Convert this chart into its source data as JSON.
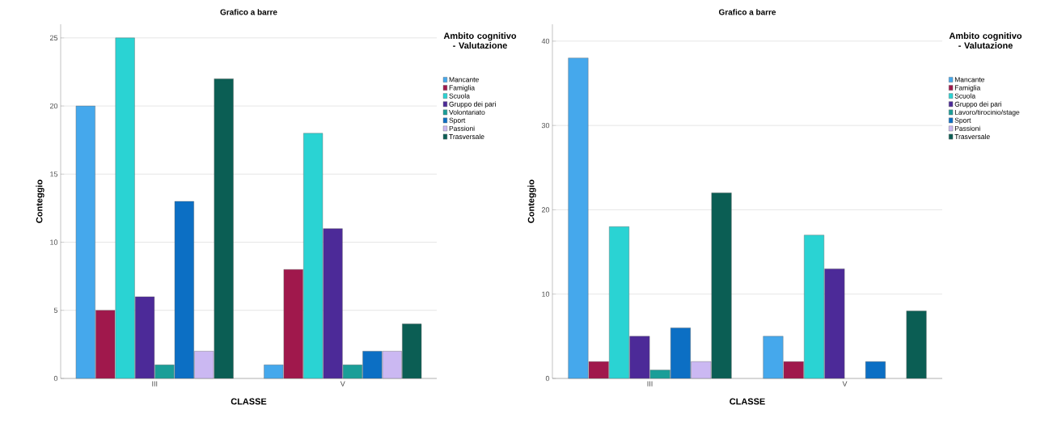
{
  "chart_data": [
    {
      "type": "bar",
      "title": "Grafico a barre",
      "xlabel": "CLASSE",
      "ylabel": "Conteggio",
      "legend_title": "Ambito cognitivo - Valutazione",
      "categories": [
        "III",
        "V"
      ],
      "ylim": [
        0,
        26
      ],
      "yticks": [
        0,
        5,
        10,
        15,
        20,
        25
      ],
      "grid": "y",
      "legend": "right",
      "series": [
        {
          "name": "Mancante",
          "color": "#45a8ec",
          "values": [
            20,
            1
          ]
        },
        {
          "name": "Famiglia",
          "color": "#a0184c",
          "values": [
            5,
            8
          ]
        },
        {
          "name": "Scuola",
          "color": "#2ad3d3",
          "values": [
            25,
            18
          ]
        },
        {
          "name": "Gruppo dei pari",
          "color": "#4c2a98",
          "values": [
            6,
            11
          ]
        },
        {
          "name": "Volontariato",
          "color": "#1a9e98",
          "values": [
            1,
            1
          ]
        },
        {
          "name": "Sport",
          "color": "#0c6fc4",
          "values": [
            13,
            2
          ]
        },
        {
          "name": "Passioni",
          "color": "#cbb8f2",
          "values": [
            2,
            2
          ]
        },
        {
          "name": "Trasversale",
          "color": "#0b5e54",
          "values": [
            22,
            4
          ]
        }
      ]
    },
    {
      "type": "bar",
      "title": "Grafico a barre",
      "xlabel": "CLASSE",
      "ylabel": "Conteggio",
      "legend_title": "Ambito cognitivo - Valutazione",
      "categories": [
        "III",
        "V"
      ],
      "ylim": [
        0,
        42
      ],
      "yticks": [
        0,
        10,
        20,
        30,
        40
      ],
      "grid": "y",
      "legend": "right",
      "series": [
        {
          "name": "Mancante",
          "color": "#45a8ec",
          "values": [
            38,
            5
          ]
        },
        {
          "name": "Famiglia",
          "color": "#a0184c",
          "values": [
            2,
            2
          ]
        },
        {
          "name": "Scuola",
          "color": "#2ad3d3",
          "values": [
            18,
            17
          ]
        },
        {
          "name": "Gruppo dei pari",
          "color": "#4c2a98",
          "values": [
            5,
            13
          ]
        },
        {
          "name": "Lavoro/tirocinio/stage",
          "color": "#1a9e98",
          "values": [
            1,
            null
          ]
        },
        {
          "name": "Sport",
          "color": "#0c6fc4",
          "values": [
            6,
            2
          ]
        },
        {
          "name": "Passioni",
          "color": "#cbb8f2",
          "values": [
            2,
            null
          ]
        },
        {
          "name": "Trasversale",
          "color": "#0b5e54",
          "values": [
            22,
            8
          ]
        }
      ]
    }
  ]
}
